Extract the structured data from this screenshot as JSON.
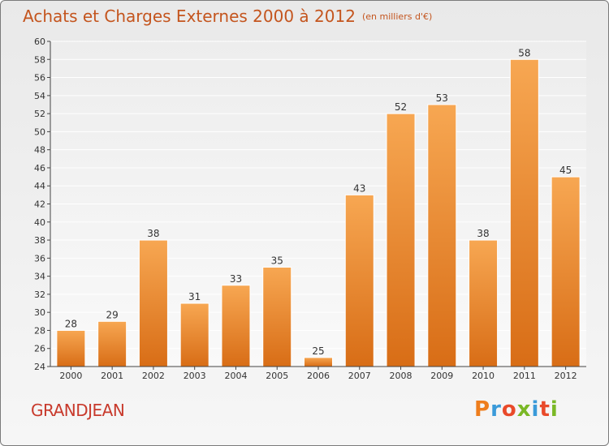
{
  "header": {
    "title": "Achats et Charges Externes 2000 à 2012",
    "subtitle": "(en milliers d'€)"
  },
  "footer": {
    "commune": "GRANDJEAN",
    "brand": "Proxiti",
    "brand_colors": [
      "#ee7d1c",
      "#3a9ad9",
      "#e94a2a",
      "#7ab826",
      "#3a9ad9",
      "#e94a2a",
      "#7ab826"
    ]
  },
  "colors": {
    "bar_top": "#f7a752",
    "bar_bottom": "#d86d16",
    "title": "#c4551e",
    "axis": "#444444"
  },
  "chart_data": {
    "type": "bar",
    "title": "Achats et Charges Externes 2000 à 2012",
    "subtitle": "(en milliers d'€)",
    "categories": [
      "2000",
      "2001",
      "2002",
      "2003",
      "2004",
      "2005",
      "2006",
      "2007",
      "2008",
      "2009",
      "2010",
      "2011",
      "2012"
    ],
    "values": [
      28,
      29,
      38,
      31,
      33,
      35,
      25,
      43,
      52,
      53,
      38,
      58,
      45
    ],
    "data_labels": [
      "28",
      "29",
      "38",
      "31",
      "33",
      "35",
      "25",
      "43",
      "52",
      "53",
      "38",
      "58",
      "45"
    ],
    "ylim": [
      24,
      60
    ],
    "yticks": [
      "24",
      "26",
      "28",
      "30",
      "32",
      "34",
      "36",
      "38",
      "40",
      "42",
      "44",
      "46",
      "48",
      "50",
      "52",
      "54",
      "56",
      "58",
      "60"
    ],
    "xlabel": "",
    "ylabel": "",
    "grid": true,
    "legend": "none"
  }
}
